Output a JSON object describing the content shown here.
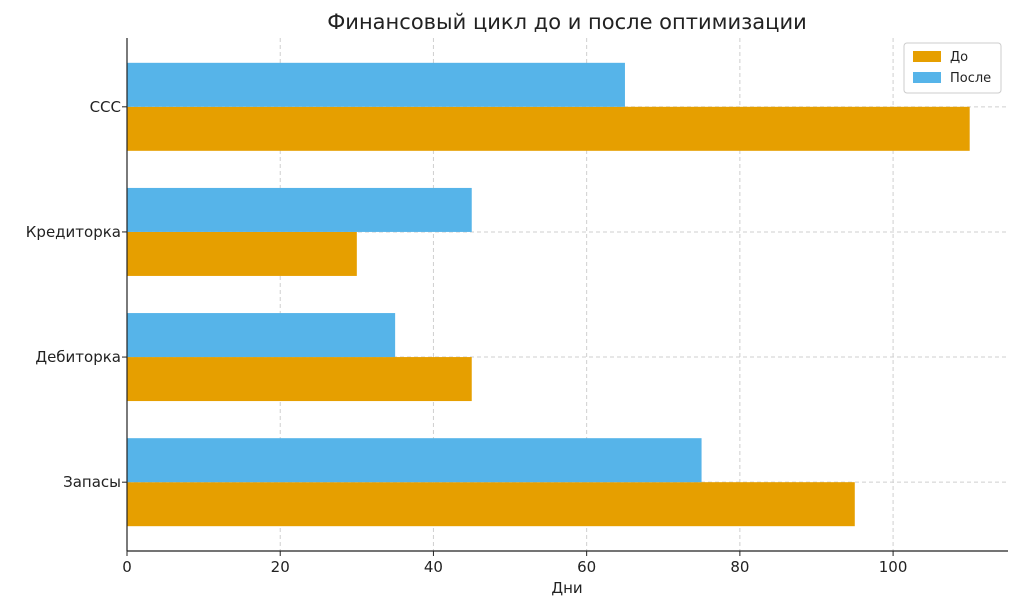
{
  "chart_data": {
    "type": "bar",
    "orientation": "horizontal",
    "title": "Финансовый цикл до и после оптимизации",
    "xlabel": "Дни",
    "ylabel": "",
    "categories": [
      "Запасы",
      "Дебиторка",
      "Кредиторка",
      "CCC"
    ],
    "series": [
      {
        "name": "До",
        "color": "#E69F00",
        "values": [
          95,
          45,
          30,
          110
        ]
      },
      {
        "name": "После",
        "color": "#56B4E9",
        "values": [
          75,
          35,
          45,
          65
        ]
      }
    ],
    "xlim": [
      0,
      115
    ],
    "xticks": [
      0,
      20,
      40,
      60,
      80,
      100
    ],
    "grid": true,
    "legend_position": "top-right"
  }
}
